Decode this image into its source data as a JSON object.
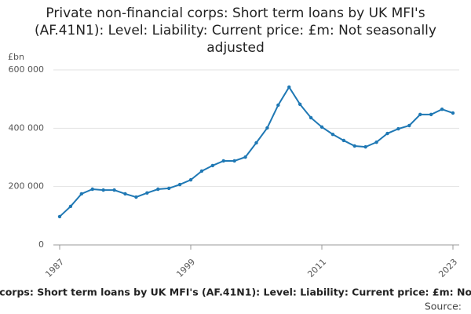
{
  "chart_data": {
    "type": "line",
    "title": "Private non-financial corps: Short term loans by UK MFI's (AF.41N1): Level: Liability: Current price: £m: Not seasonally adjusted",
    "y_label": "£bn",
    "source": "Source:",
    "x": [
      1987,
      1988,
      1989,
      1990,
      1991,
      1992,
      1993,
      1994,
      1995,
      1996,
      1997,
      1998,
      1999,
      2000,
      2001,
      2002,
      2003,
      2004,
      2005,
      2006,
      2007,
      2008,
      2009,
      2010,
      2011,
      2012,
      2013,
      2014,
      2015,
      2016,
      2017,
      2018,
      2019,
      2020,
      2021,
      2022,
      2023
    ],
    "series": [
      {
        "color": "#1f78b4",
        "values": [
          97000,
          132000,
          175000,
          191000,
          188000,
          188000,
          175000,
          164000,
          178000,
          191000,
          194000,
          207000,
          223000,
          253000,
          272000,
          288000,
          288000,
          301000,
          350000,
          401000,
          479000,
          541000,
          482000,
          436000,
          404000,
          379000,
          358000,
          339000,
          336000,
          352000,
          382000,
          398000,
          409000,
          447000,
          447000,
          465000,
          452000
        ]
      }
    ],
    "xlim": [
      1987,
      2023
    ],
    "xticks": [
      1987,
      1999,
      2011,
      2023
    ],
    "ylim": [
      0,
      600000
    ],
    "yticks": [
      0,
      {
        "value": 200000,
        "label": "200 000"
      },
      {
        "value": 400000,
        "label": "400 000"
      },
      {
        "value": 600000,
        "label": "600 000"
      }
    ],
    "grid": true
  }
}
